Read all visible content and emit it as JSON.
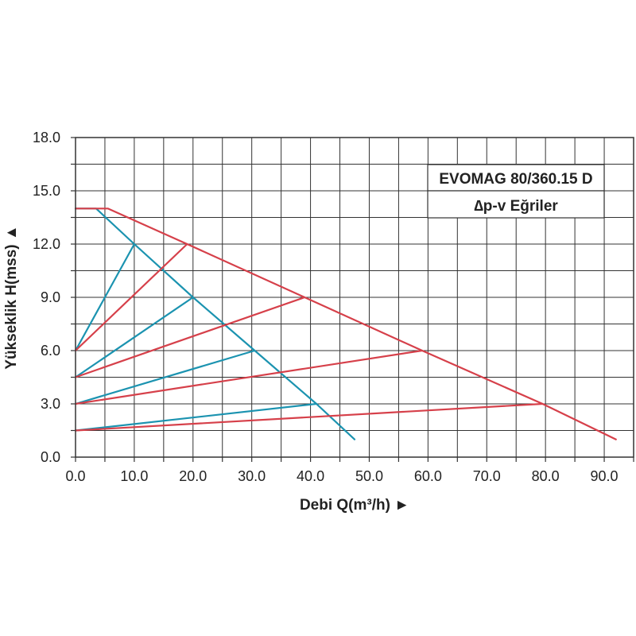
{
  "chart_data": {
    "type": "line",
    "title": "EVOMAG 80/360.15 D",
    "subtitle": "∆p-v Eğriler",
    "xlabel": "Debi Q(m³/h) ►",
    "ylabel": "Yükseklik H(mss) ▲",
    "xlim": [
      0,
      95
    ],
    "ylim": [
      0,
      18
    ],
    "x_ticks": [
      "0.0",
      "10.0",
      "20.0",
      "30.0",
      "40.0",
      "50.0",
      "60.0",
      "70.0",
      "80.0",
      "90.0"
    ],
    "y_ticks": [
      "0.0",
      "3.0",
      "6.0",
      "9.0",
      "12.0",
      "15.0",
      "18.0"
    ],
    "grid": true,
    "colors": {
      "red": "#d6404a",
      "blue": "#1b93b0",
      "grid": "#333333"
    },
    "series": [
      {
        "values": [
          [
            0,
            14
          ],
          [
            3.5,
            14
          ],
          [
            10,
            12
          ],
          [
            20,
            9
          ],
          [
            30.5,
            6
          ],
          [
            41,
            3
          ],
          [
            47.5,
            1
          ]
        ],
        "color": "blue"
      },
      {
        "values": [
          [
            0,
            14
          ],
          [
            5.5,
            14
          ],
          [
            19,
            12
          ],
          [
            39,
            9
          ],
          [
            59,
            6
          ],
          [
            79.5,
            3
          ],
          [
            92,
            1
          ]
        ],
        "color": "red"
      },
      {
        "values": [
          [
            0,
            6
          ],
          [
            10,
            12
          ]
        ],
        "color": "blue"
      },
      {
        "values": [
          [
            0,
            4.5
          ],
          [
            20,
            9
          ]
        ],
        "color": "blue"
      },
      {
        "values": [
          [
            0,
            3
          ],
          [
            30.5,
            6
          ]
        ],
        "color": "blue"
      },
      {
        "values": [
          [
            0,
            1.5
          ],
          [
            41,
            3
          ]
        ],
        "color": "blue"
      },
      {
        "values": [
          [
            0,
            6
          ],
          [
            19,
            12
          ]
        ],
        "color": "red"
      },
      {
        "values": [
          [
            0,
            4.5
          ],
          [
            39,
            9
          ]
        ],
        "color": "red"
      },
      {
        "values": [
          [
            0,
            3
          ],
          [
            59,
            6
          ]
        ],
        "color": "red"
      },
      {
        "values": [
          [
            0,
            1.5
          ],
          [
            79.5,
            3
          ]
        ],
        "color": "red"
      }
    ]
  }
}
